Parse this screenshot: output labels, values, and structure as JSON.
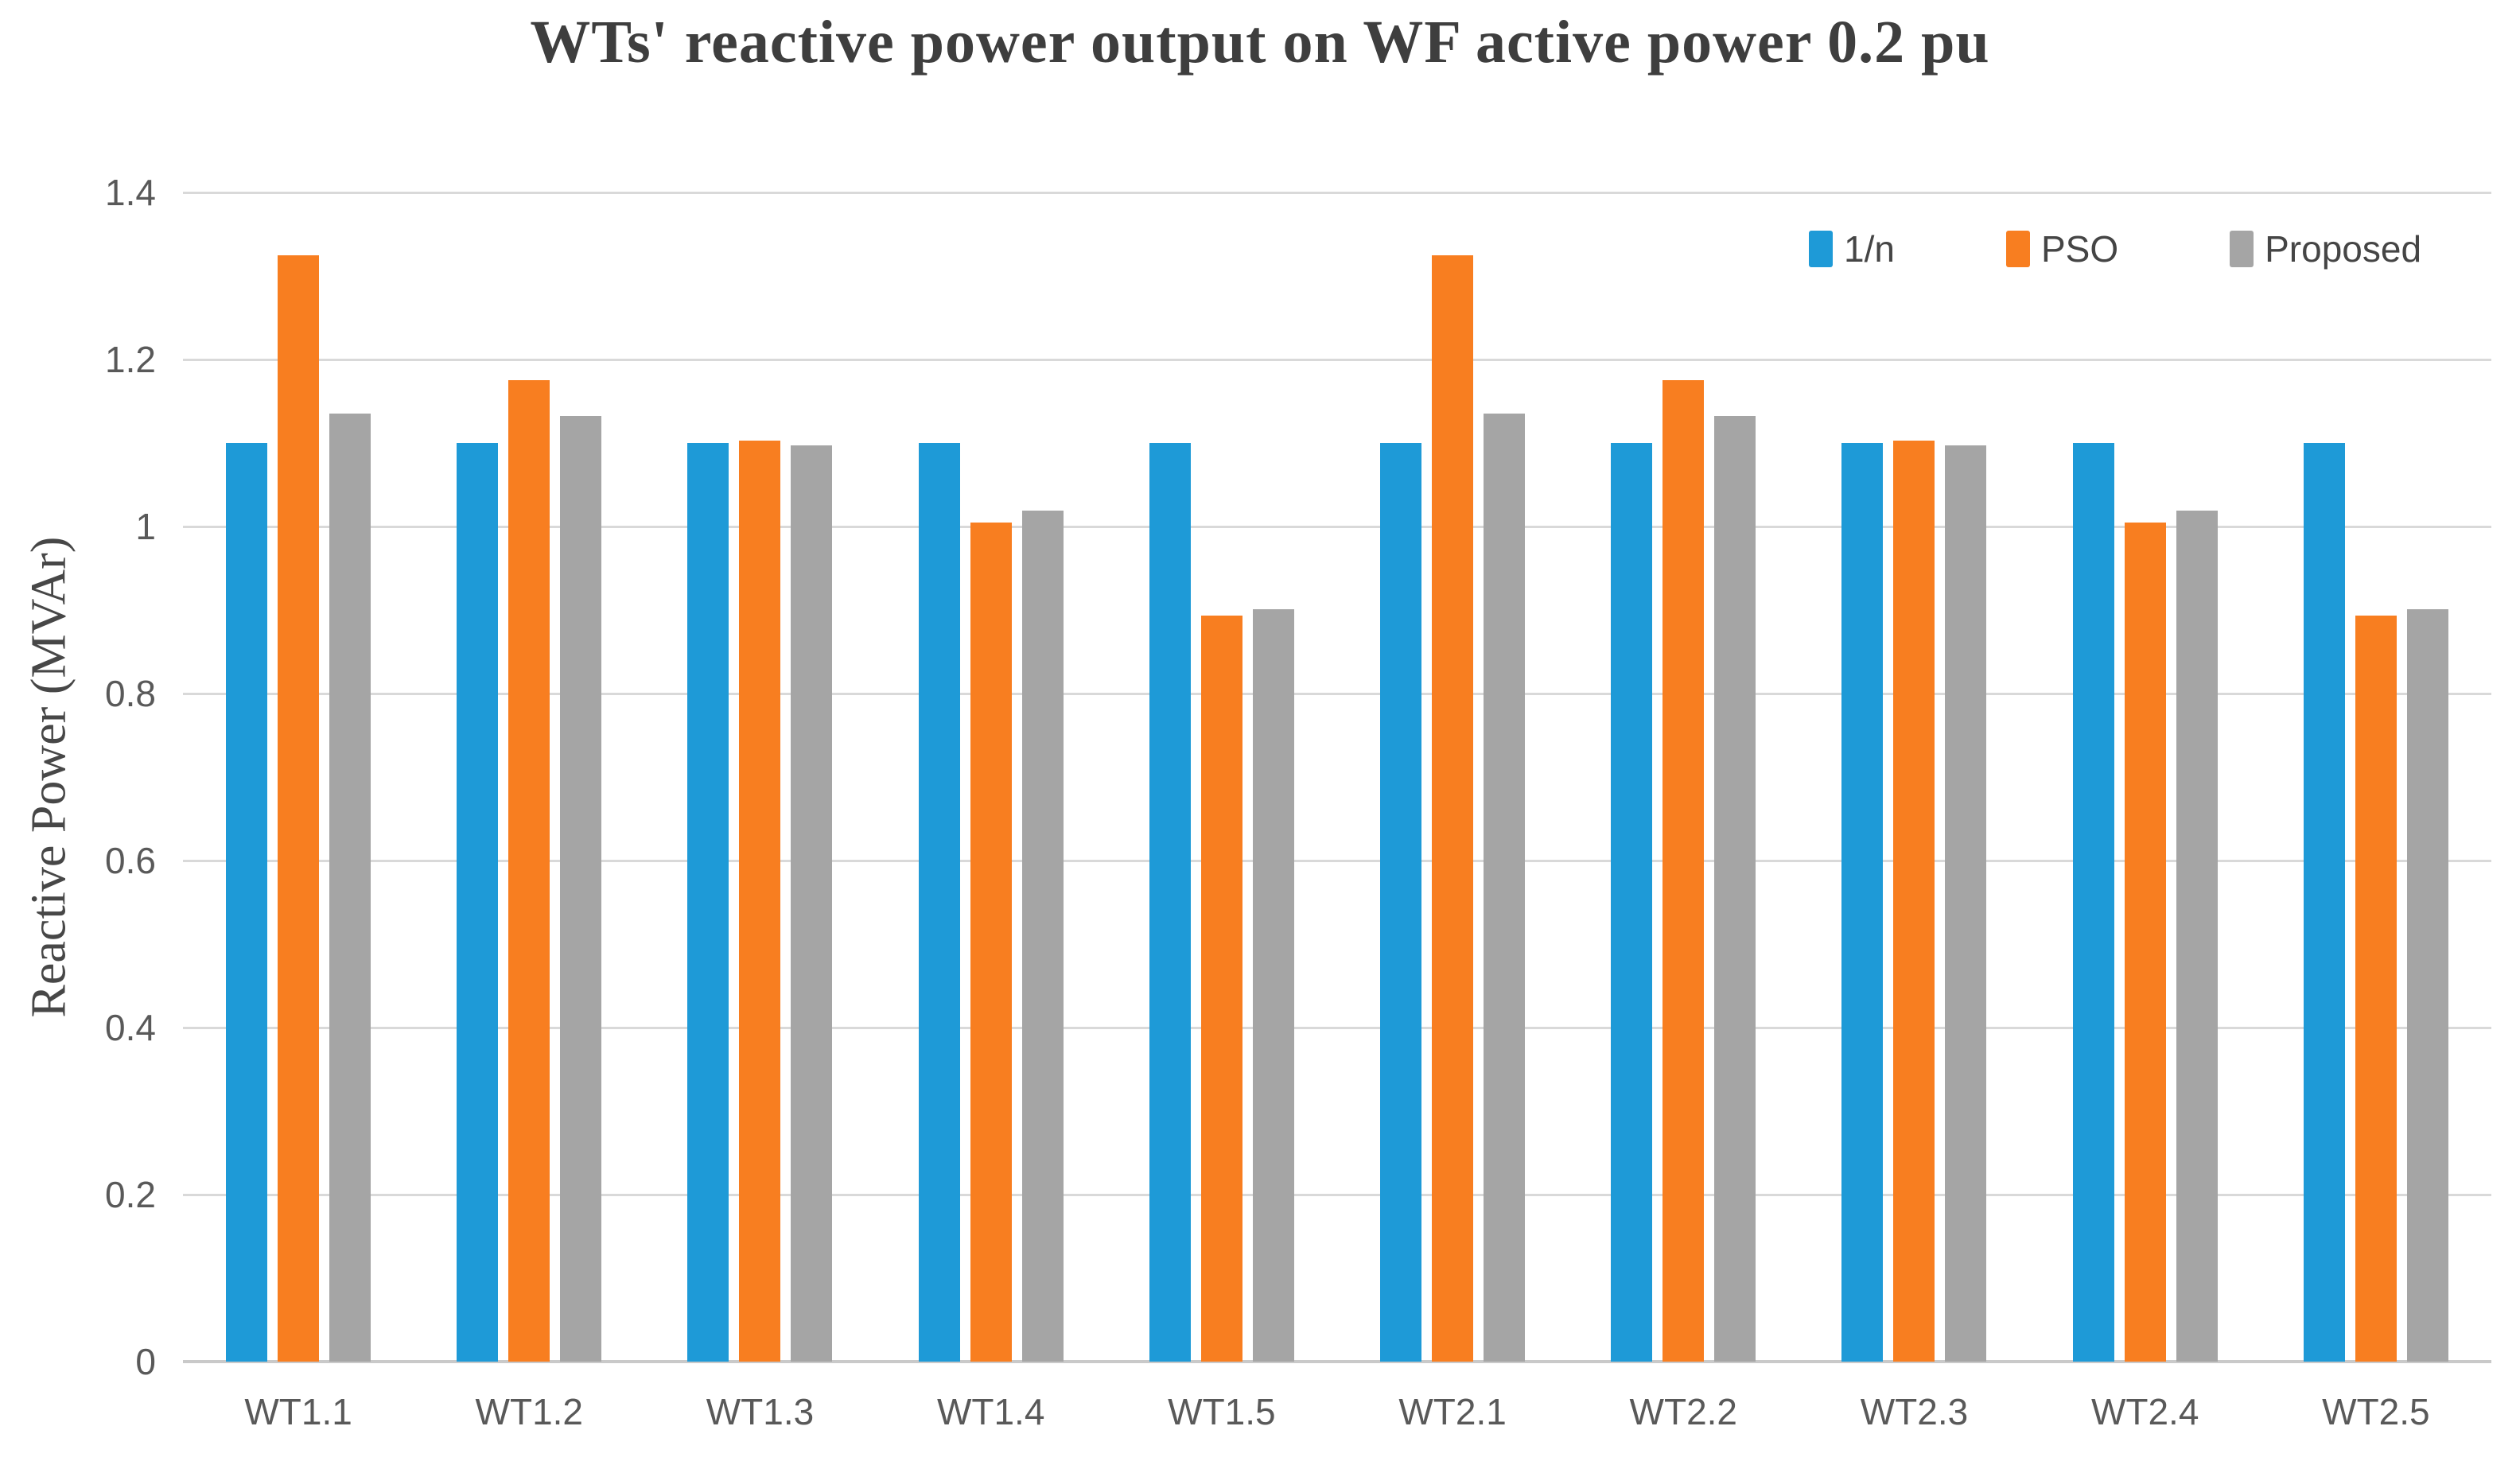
{
  "chart_data": {
    "type": "bar",
    "title": "WTs' reactive power output on WF active power 0.2 pu",
    "ylabel": "Reactive Power (MVAr)",
    "xlabel": "",
    "categories": [
      "WT1.1",
      "WT1.2",
      "WT1.3",
      "WT1.4",
      "WT1.5",
      "WT2.1",
      "WT2.2",
      "WT2.3",
      "WT2.4",
      "WT2.5"
    ],
    "series": [
      {
        "name": "1/n",
        "color": "#1e9ad7",
        "values": [
          1.1,
          1.1,
          1.1,
          1.1,
          1.1,
          1.1,
          1.1,
          1.1,
          1.1,
          1.1
        ]
      },
      {
        "name": "PSO",
        "color": "#f87e20",
        "values": [
          1.325,
          1.175,
          1.103,
          1.005,
          0.893,
          1.325,
          1.175,
          1.103,
          1.005,
          0.893
        ]
      },
      {
        "name": "Proposed",
        "color": "#a5a5a5",
        "values": [
          1.135,
          1.132,
          1.097,
          1.019,
          0.901,
          1.135,
          1.132,
          1.097,
          1.019,
          0.901
        ]
      }
    ],
    "ylim": [
      0,
      1.4
    ],
    "yticks": [
      0,
      0.2,
      0.4,
      0.6,
      0.8,
      1,
      1.2,
      1.4
    ],
    "ytick_labels": [
      "0",
      "0.2",
      "0.4",
      "0.6",
      "0.8",
      "1",
      "1.2",
      "1.4"
    ],
    "grid": true,
    "legend_position": "top-right"
  },
  "colors": {
    "background": "#ffffff",
    "gridline": "#d9d9d9",
    "axis_line": "#c9c9c9",
    "title_text": "#3e3e3e",
    "axis_text": "#595959",
    "legend_text": "#454545"
  }
}
